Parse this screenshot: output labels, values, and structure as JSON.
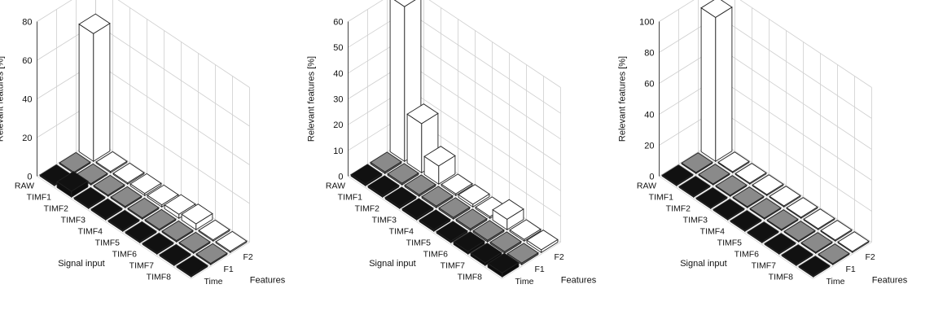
{
  "chart_data": [
    {
      "type": "bar3d",
      "ylabel": "Relevant features [%]",
      "zlim": [
        0,
        80
      ],
      "zticks": [
        0,
        20,
        40,
        60,
        80
      ],
      "signal_axis_label": "Signal input",
      "feature_axis_label": "Features",
      "signal_inputs": [
        "RAW",
        "TIMF1",
        "TIMF2",
        "TIMF3",
        "TIMF4",
        "TIMF5",
        "TIMF6",
        "TIMF7",
        "TIMF8"
      ],
      "features": [
        "Time",
        "F1",
        "F2"
      ],
      "grid": true,
      "series": [
        {
          "feature": "Time",
          "color": "#111111",
          "values": [
            0,
            3,
            0,
            0,
            0,
            0,
            0,
            0,
            0
          ]
        },
        {
          "feature": "F1",
          "color": "#8a8a8a",
          "values": [
            0,
            0,
            0,
            0,
            0,
            0,
            0,
            0,
            0
          ]
        },
        {
          "feature": "F2",
          "color": "#ffffff",
          "values": [
            66,
            0,
            0,
            1,
            1,
            2,
            3,
            0,
            0
          ]
        }
      ]
    },
    {
      "type": "bar3d",
      "ylabel": "Relevant features [%]",
      "zlim": [
        0,
        60
      ],
      "zticks": [
        0,
        10,
        20,
        30,
        40,
        50,
        60
      ],
      "signal_axis_label": "Signal input",
      "feature_axis_label": "Features",
      "signal_inputs": [
        "RAW",
        "TIMF1",
        "TIMF2",
        "TIMF3",
        "TIMF4",
        "TIMF5",
        "TIMF6",
        "TIMF7",
        "TIMF8"
      ],
      "features": [
        "Time",
        "F1",
        "F2"
      ],
      "grid": true,
      "series": [
        {
          "feature": "Time",
          "color": "#111111",
          "values": [
            0,
            0,
            0,
            0,
            0,
            0,
            1,
            1,
            1.5
          ]
        },
        {
          "feature": "F1",
          "color": "#8a8a8a",
          "values": [
            0,
            0,
            0,
            0,
            0,
            0,
            0,
            0,
            0
          ]
        },
        {
          "feature": "F2",
          "color": "#ffffff",
          "values": [
            60,
            19,
            7,
            0,
            1,
            0,
            4,
            0,
            1
          ]
        }
      ]
    },
    {
      "type": "bar3d",
      "ylabel": "Relevant features [%]",
      "zlim": [
        0,
        100
      ],
      "zticks": [
        0,
        20,
        40,
        60,
        80,
        100
      ],
      "signal_axis_label": "Signal input",
      "feature_axis_label": "Features",
      "signal_inputs": [
        "RAW",
        "TIMF1",
        "TIMF2",
        "TIMF3",
        "TIMF4",
        "TIMF5",
        "TIMF6",
        "TIMF7",
        "TIMF8"
      ],
      "features": [
        "Time",
        "F1",
        "F2"
      ],
      "grid": true,
      "series": [
        {
          "feature": "Time",
          "color": "#111111",
          "values": [
            0,
            0,
            0,
            0,
            0,
            0,
            0,
            0,
            0
          ]
        },
        {
          "feature": "F1",
          "color": "#8a8a8a",
          "values": [
            0,
            0,
            0,
            0,
            0,
            0,
            0,
            0,
            0
          ]
        },
        {
          "feature": "F2",
          "color": "#ffffff",
          "values": [
            93,
            0,
            0,
            0,
            0,
            0,
            0,
            0,
            0
          ]
        }
      ]
    }
  ]
}
